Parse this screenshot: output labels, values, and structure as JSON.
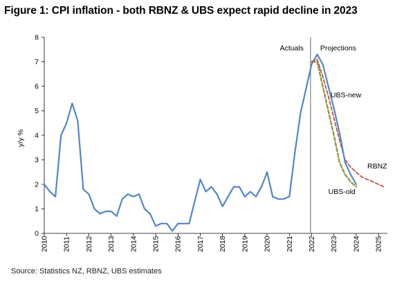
{
  "title": "Figure 1: CPI inflation - both RBNZ & UBS expect rapid decline in 2023",
  "source": "Source: Statistics NZ, RBNZ, UBS estimates",
  "colors": {
    "actual": "#4f86c6",
    "ubs_new": "#4f86c6",
    "ubs_old": "#8c9a3b",
    "rbnz": "#c0504d"
  },
  "chart_data": {
    "type": "line",
    "ylabel": "y/y %",
    "ylim": [
      0,
      8
    ],
    "yticks": [
      0,
      1,
      2,
      3,
      4,
      5,
      6,
      7,
      8
    ],
    "xlim": [
      2010,
      2025.4
    ],
    "xticks": [
      "2010",
      "2011",
      "2012",
      "2013",
      "2014",
      "2015",
      "2016",
      "2017",
      "2018",
      "2019",
      "2020",
      "2021",
      "2022",
      "2023",
      "2024",
      "2025"
    ],
    "divider_x": 2021.95,
    "annotations": {
      "left": "Actuals",
      "right": "Projections"
    },
    "series": [
      {
        "name": "",
        "style": "solid",
        "x": [
          2010.0,
          2010.25,
          2010.5,
          2010.75,
          2011.0,
          2011.25,
          2011.5,
          2011.75,
          2012.0,
          2012.25,
          2012.5,
          2012.75,
          2013.0,
          2013.25,
          2013.5,
          2013.75,
          2014.0,
          2014.25,
          2014.5,
          2014.75,
          2015.0,
          2015.25,
          2015.5,
          2015.75,
          2016.0,
          2016.25,
          2016.5,
          2016.75,
          2017.0,
          2017.25,
          2017.5,
          2017.75,
          2018.0,
          2018.25,
          2018.5,
          2018.75,
          2019.0,
          2019.25,
          2019.5,
          2019.75,
          2020.0,
          2020.25,
          2020.5,
          2020.75,
          2021.0,
          2021.25,
          2021.5,
          2021.75,
          2022.0,
          2022.25
        ],
        "y": [
          2.0,
          1.7,
          1.5,
          4.0,
          4.5,
          5.3,
          4.6,
          1.8,
          1.6,
          1.0,
          0.8,
          0.9,
          0.9,
          0.7,
          1.4,
          1.6,
          1.5,
          1.6,
          1.0,
          0.8,
          0.3,
          0.4,
          0.4,
          0.1,
          0.4,
          0.4,
          0.4,
          1.3,
          2.2,
          1.7,
          1.9,
          1.6,
          1.1,
          1.5,
          1.9,
          1.9,
          1.5,
          1.7,
          1.5,
          1.9,
          2.5,
          1.5,
          1.4,
          1.4,
          1.5,
          3.3,
          4.9,
          5.9,
          6.9,
          7.3
        ]
      },
      {
        "name": "UBS-new",
        "style": "solid",
        "x": [
          2022.25,
          2022.5,
          2022.75,
          2023.0,
          2023.25,
          2023.5,
          2023.75,
          2024.0
        ],
        "y": [
          7.3,
          6.9,
          6.0,
          5.1,
          4.1,
          2.9,
          2.4,
          2.0
        ]
      },
      {
        "name": "RBNZ",
        "style": "dashed",
        "x": [
          2022.0,
          2022.25,
          2022.5,
          2022.75,
          2023.0,
          2023.25,
          2023.5,
          2023.75,
          2024.0,
          2024.25,
          2024.5,
          2024.75,
          2025.0,
          2025.25
        ],
        "y": [
          7.0,
          7.1,
          6.4,
          5.6,
          4.7,
          3.8,
          3.0,
          2.7,
          2.5,
          2.3,
          2.2,
          2.1,
          2.0,
          1.9
        ]
      },
      {
        "name": "UBS-old",
        "style": "dashed",
        "x": [
          2022.0,
          2022.25,
          2022.5,
          2022.75,
          2023.0,
          2023.25,
          2023.5,
          2023.75,
          2024.0
        ],
        "y": [
          7.0,
          7.0,
          6.0,
          5.0,
          4.0,
          2.9,
          2.4,
          2.1,
          1.9
        ]
      }
    ]
  }
}
